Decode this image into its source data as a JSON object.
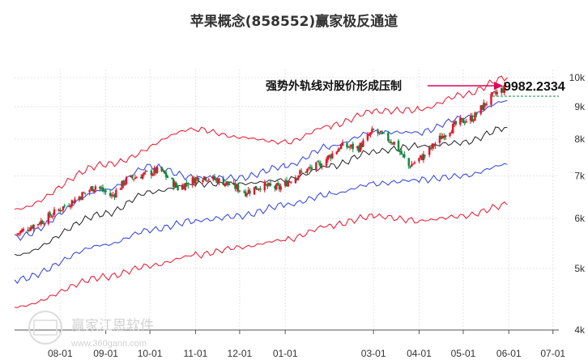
{
  "chart_data": {
    "type": "candlestick",
    "title": "苹果概念(858552)赢家极反通道",
    "annotation": {
      "text": "强势外轨线对股价形成压制",
      "value_label": "9982.2334",
      "value": 9982.2334,
      "arrow_color": "#e0005a"
    },
    "y_axis": {
      "scale": "log",
      "ticks": [
        4000,
        5000,
        6000,
        7000,
        8000,
        9000,
        10000
      ],
      "tick_labels": [
        "4k",
        "5k",
        "6k",
        "7k",
        "8k",
        "9k",
        "10k"
      ],
      "range": [
        4000,
        10000
      ],
      "position": "right"
    },
    "x_axis": {
      "ticks": [
        {
          "date": "2023-08-01",
          "label": "08-01"
        },
        {
          "date": "2023-09-01",
          "label": "09-01"
        },
        {
          "date": "2023-10-01",
          "label": "10-01"
        },
        {
          "date": "2023-11-01",
          "label": "11-01"
        },
        {
          "date": "2023-12-01",
          "label": "12-01"
        },
        {
          "date": "2024-01-01",
          "label": "01-01"
        },
        {
          "date": "2024-03-01",
          "label": "03-01"
        },
        {
          "date": "2024-04-01",
          "label": "04-01"
        },
        {
          "date": "2024-05-01",
          "label": "05-01"
        },
        {
          "date": "2024-06-01",
          "label": "06-01"
        },
        {
          "date": "2024-07-01",
          "label": "07-01"
        }
      ],
      "range": [
        "2023-07-01",
        "2024-07-05"
      ]
    },
    "grid": true,
    "colors": {
      "up": "#e8132b",
      "down": "#0a8a3c",
      "outer_band": "#e8132b",
      "inner_band": "#2b3ee0",
      "mid_line": "#222222"
    },
    "price_anchors": [
      {
        "date": "2023-07-01",
        "close": 5650
      },
      {
        "date": "2023-07-20",
        "close": 5950
      },
      {
        "date": "2023-08-10",
        "close": 6400
      },
      {
        "date": "2023-08-25",
        "close": 6750
      },
      {
        "date": "2023-09-05",
        "close": 6500
      },
      {
        "date": "2023-09-15",
        "close": 6900
      },
      {
        "date": "2023-09-28",
        "close": 7050
      },
      {
        "date": "2023-10-08",
        "close": 7150
      },
      {
        "date": "2023-10-20",
        "close": 6700
      },
      {
        "date": "2023-11-05",
        "close": 7000
      },
      {
        "date": "2023-11-20",
        "close": 6850
      },
      {
        "date": "2023-12-05",
        "close": 6600
      },
      {
        "date": "2023-12-15",
        "close": 6750
      },
      {
        "date": "2023-12-28",
        "close": 6700
      },
      {
        "date": "2024-01-10",
        "close": 7050
      },
      {
        "date": "2024-01-25",
        "close": 7300
      },
      {
        "date": "2024-02-08",
        "close": 7800
      },
      {
        "date": "2024-02-20",
        "close": 7750
      },
      {
        "date": "2024-03-01",
        "close": 8250
      },
      {
        "date": "2024-03-15",
        "close": 7900
      },
      {
        "date": "2024-03-25",
        "close": 7250
      },
      {
        "date": "2024-04-05",
        "close": 7550
      },
      {
        "date": "2024-04-18",
        "close": 8150
      },
      {
        "date": "2024-04-28",
        "close": 8500
      },
      {
        "date": "2024-05-08",
        "close": 8650
      },
      {
        "date": "2024-05-15",
        "close": 9050
      },
      {
        "date": "2024-05-22",
        "close": 9400
      },
      {
        "date": "2024-05-30",
        "close": 9650
      }
    ],
    "bands": {
      "outer_upper": [
        {
          "date": "2023-07-01",
          "value": 6200
        },
        {
          "date": "2023-09-01",
          "value": 7300
        },
        {
          "date": "2023-11-01",
          "value": 8300
        },
        {
          "date": "2023-12-01",
          "value": 8050
        },
        {
          "date": "2024-01-01",
          "value": 7900
        },
        {
          "date": "2024-02-01",
          "value": 8400
        },
        {
          "date": "2024-03-01",
          "value": 8850
        },
        {
          "date": "2024-04-01",
          "value": 8900
        },
        {
          "date": "2024-05-01",
          "value": 9400
        },
        {
          "date": "2024-05-31",
          "value": 10000
        }
      ],
      "inner_upper": [
        {
          "date": "2023-07-01",
          "value": 5600
        },
        {
          "date": "2023-09-01",
          "value": 6650
        },
        {
          "date": "2023-10-01",
          "value": 7250
        },
        {
          "date": "2023-11-01",
          "value": 6950
        },
        {
          "date": "2023-12-01",
          "value": 6950
        },
        {
          "date": "2024-01-01",
          "value": 7250
        },
        {
          "date": "2024-02-01",
          "value": 7800
        },
        {
          "date": "2024-03-01",
          "value": 8200
        },
        {
          "date": "2024-04-01",
          "value": 8200
        },
        {
          "date": "2024-05-01",
          "value": 8650
        },
        {
          "date": "2024-05-31",
          "value": 9200
        }
      ],
      "mid": [
        {
          "date": "2023-07-01",
          "value": 5250
        },
        {
          "date": "2023-09-01",
          "value": 6100
        },
        {
          "date": "2023-10-01",
          "value": 6600
        },
        {
          "date": "2023-11-01",
          "value": 6800
        },
        {
          "date": "2023-12-01",
          "value": 6800
        },
        {
          "date": "2024-01-01",
          "value": 6900
        },
        {
          "date": "2024-02-01",
          "value": 7250
        },
        {
          "date": "2024-03-01",
          "value": 7650
        },
        {
          "date": "2024-04-01",
          "value": 7800
        },
        {
          "date": "2024-05-01",
          "value": 7900
        },
        {
          "date": "2024-05-31",
          "value": 8350
        }
      ],
      "inner_lower": [
        {
          "date": "2023-07-01",
          "value": 4800
        },
        {
          "date": "2023-09-01",
          "value": 5450
        },
        {
          "date": "2023-10-01",
          "value": 5750
        },
        {
          "date": "2023-11-01",
          "value": 5950
        },
        {
          "date": "2023-12-01",
          "value": 6050
        },
        {
          "date": "2024-01-01",
          "value": 6300
        },
        {
          "date": "2024-02-01",
          "value": 6550
        },
        {
          "date": "2024-03-01",
          "value": 6800
        },
        {
          "date": "2024-04-01",
          "value": 6900
        },
        {
          "date": "2024-05-01",
          "value": 7000
        },
        {
          "date": "2024-05-31",
          "value": 7300
        }
      ],
      "outer_lower": [
        {
          "date": "2023-07-01",
          "value": 4350
        },
        {
          "date": "2023-09-01",
          "value": 4850
        },
        {
          "date": "2023-10-01",
          "value": 5050
        },
        {
          "date": "2023-11-01",
          "value": 5250
        },
        {
          "date": "2023-12-01",
          "value": 5400
        },
        {
          "date": "2024-01-01",
          "value": 5550
        },
        {
          "date": "2024-02-01",
          "value": 5850
        },
        {
          "date": "2024-03-01",
          "value": 6050
        },
        {
          "date": "2024-04-01",
          "value": 5950
        },
        {
          "date": "2024-05-01",
          "value": 6050
        },
        {
          "date": "2024-05-31",
          "value": 6300
        }
      ]
    }
  },
  "watermark": {
    "name": "赢家江恩软件",
    "url": "www.360gann.com",
    "logo_text": "赢家网"
  }
}
